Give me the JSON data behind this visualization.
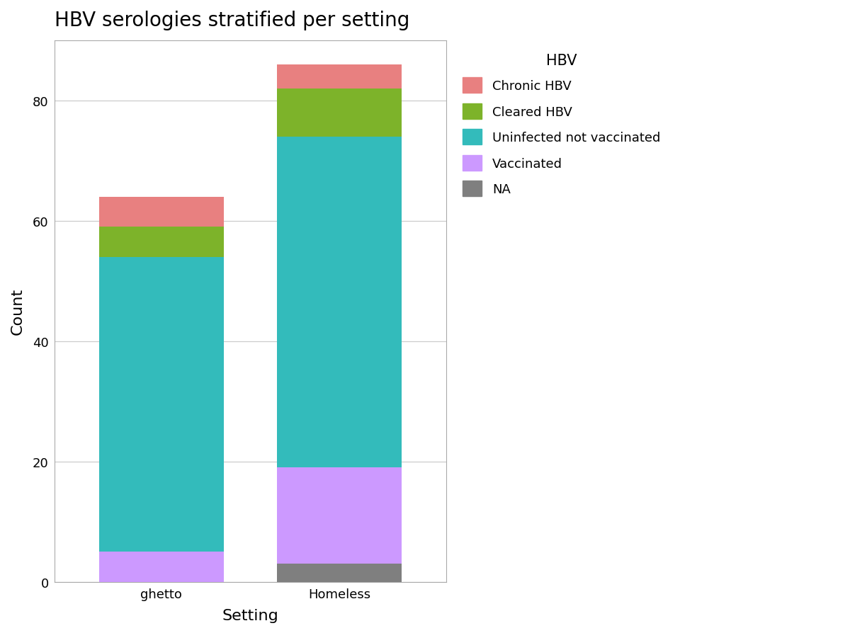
{
  "title": "HBV serologies stratified per setting",
  "xlabel": "Setting",
  "ylabel": "Count",
  "categories": [
    "ghetto",
    "Homeless"
  ],
  "segments": {
    "NA": {
      "ghetto": 0,
      "Homeless": 3
    },
    "Vaccinated": {
      "ghetto": 5,
      "Homeless": 16
    },
    "Uninfected not vaccinated": {
      "ghetto": 49,
      "Homeless": 55
    },
    "Cleared HBV": {
      "ghetto": 5,
      "Homeless": 8
    },
    "Chronic HBV": {
      "ghetto": 5,
      "Homeless": 4
    }
  },
  "segment_order": [
    "NA",
    "Vaccinated",
    "Uninfected not vaccinated",
    "Cleared HBV",
    "Chronic HBV"
  ],
  "colors": {
    "NA": "#7F7F7F",
    "Vaccinated": "#CC99FF",
    "Uninfected not vaccinated": "#33BBBB",
    "Cleared HBV": "#7DB32A",
    "Chronic HBV": "#E88080"
  },
  "legend_title": "HBV",
  "legend_order": [
    "Chronic HBV",
    "Cleared HBV",
    "Uninfected not vaccinated",
    "Vaccinated",
    "NA"
  ],
  "ylim": [
    0,
    90
  ],
  "yticks": [
    0,
    20,
    40,
    60,
    80
  ],
  "bar_width": 0.7,
  "background_color": "#ffffff",
  "plot_background": "#ffffff",
  "grid_color": "#cccccc",
  "title_fontsize": 20,
  "axis_label_fontsize": 16,
  "tick_fontsize": 13,
  "legend_fontsize": 13,
  "legend_title_fontsize": 15
}
